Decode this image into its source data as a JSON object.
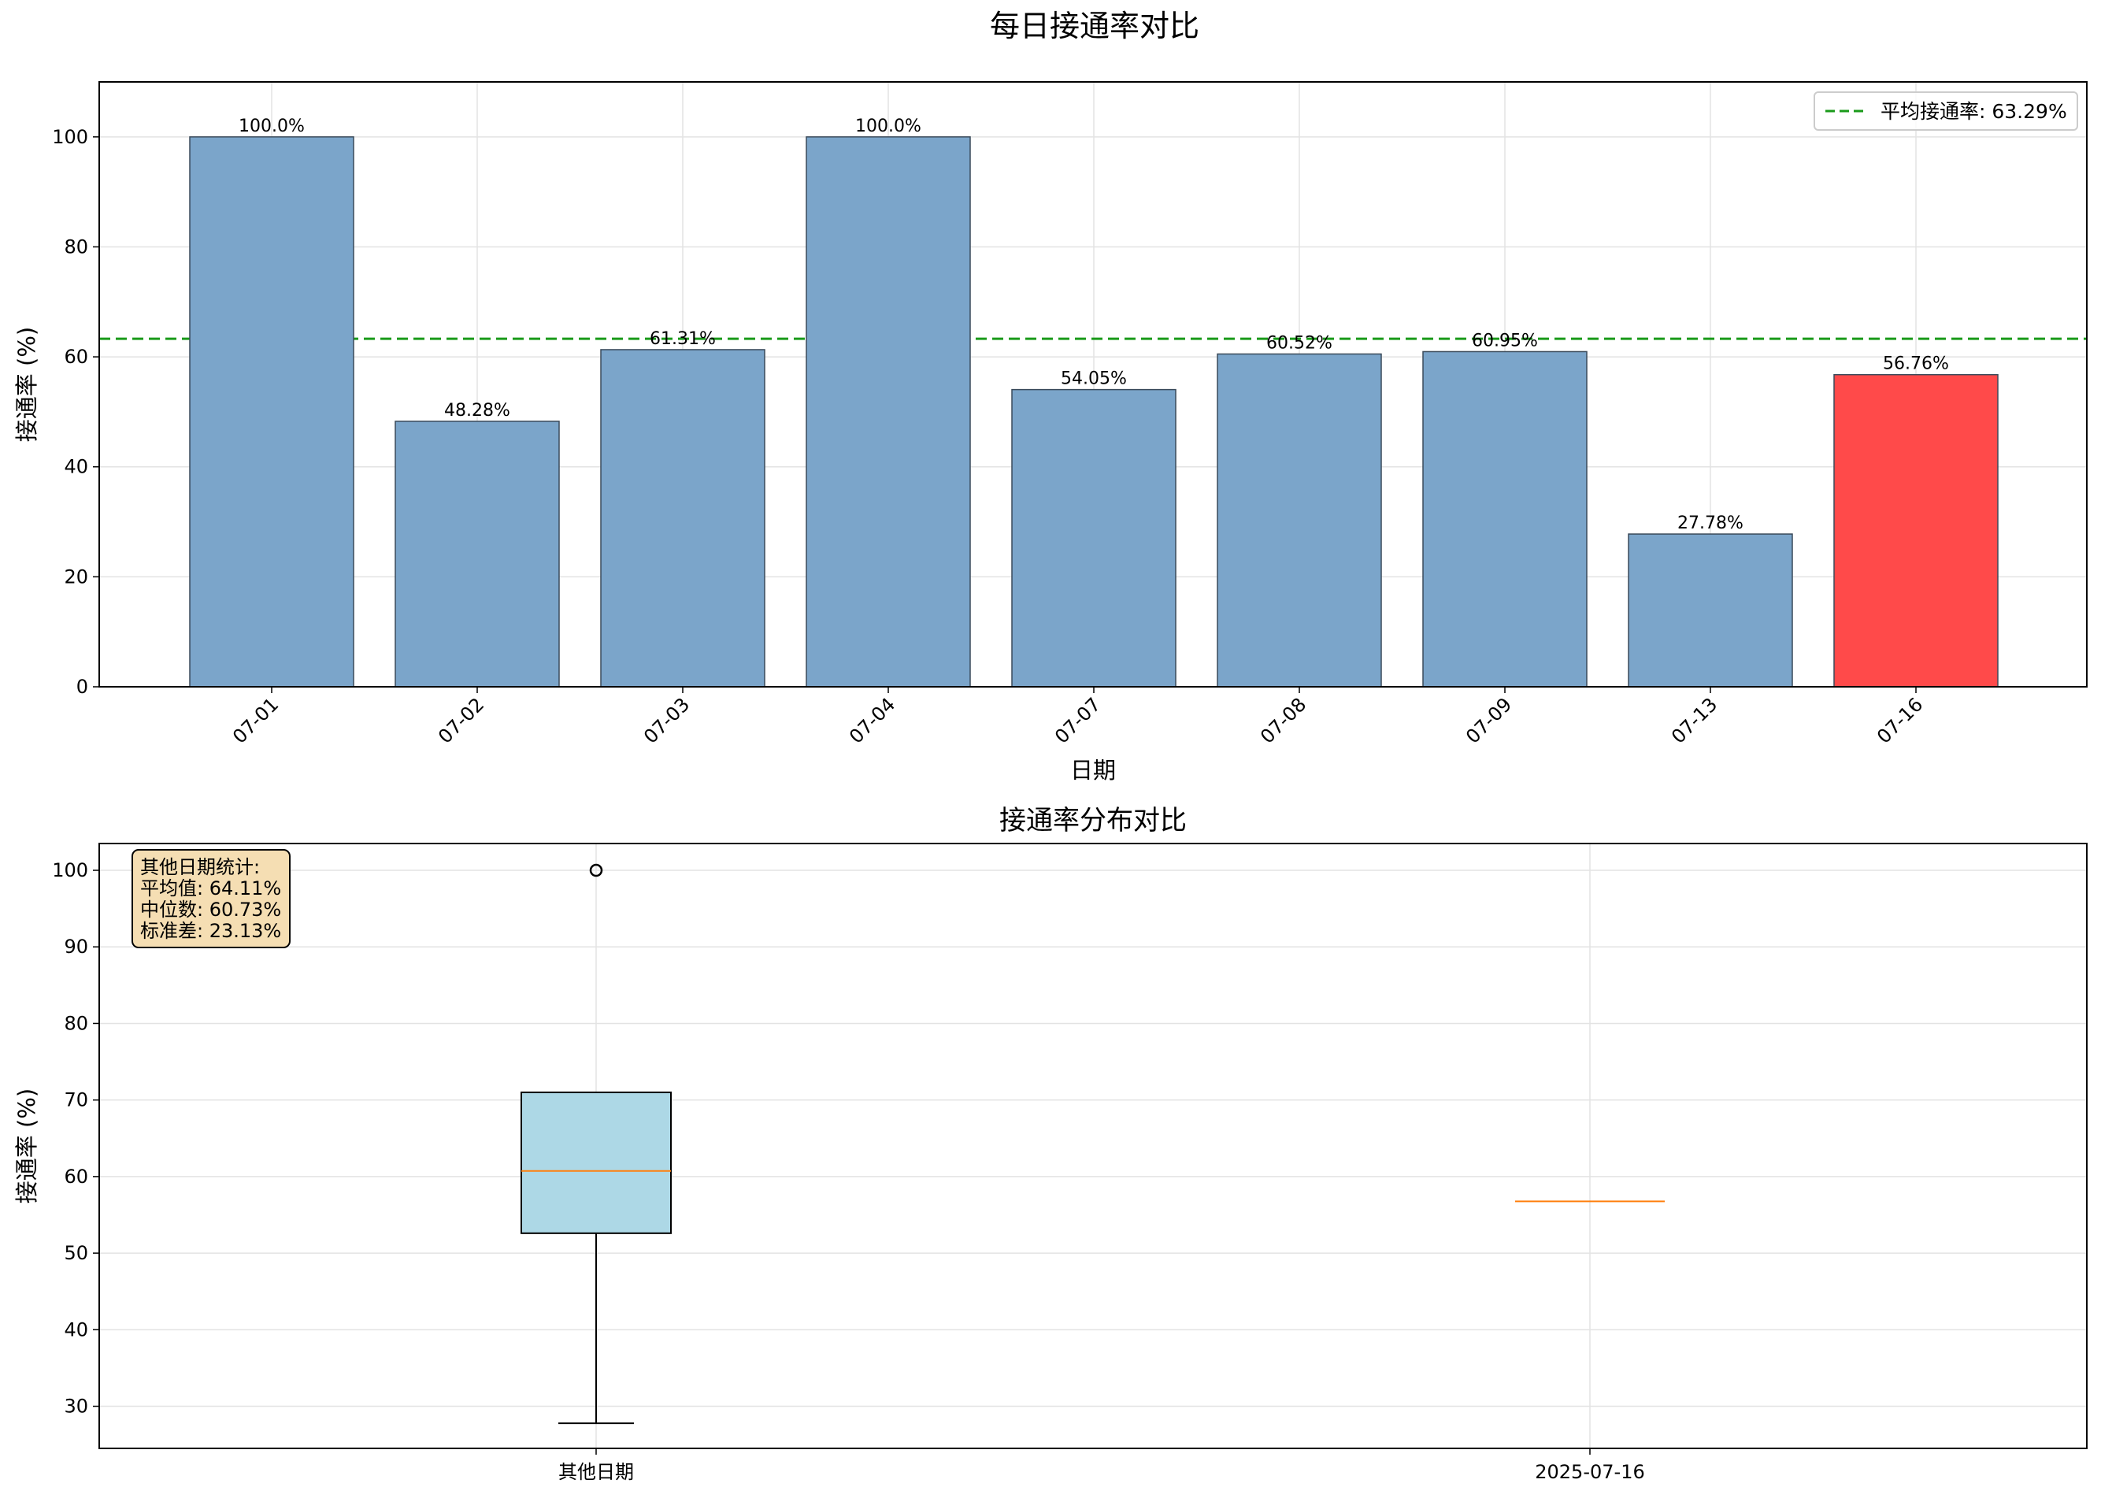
{
  "figure": {
    "suptitle": "每日接通率对比"
  },
  "chart_data": [
    {
      "type": "bar",
      "title": "",
      "xlabel": "日期",
      "ylabel": "接通率 (%)",
      "ylim": [
        0,
        110
      ],
      "yticks": [
        0,
        20,
        40,
        60,
        80,
        100
      ],
      "grid": true,
      "categories": [
        "07-01",
        "07-02",
        "07-03",
        "07-04",
        "07-07",
        "07-08",
        "07-09",
        "07-13",
        "07-16"
      ],
      "values": [
        100.0,
        48.28,
        61.31,
        100.0,
        54.05,
        60.52,
        60.95,
        27.78,
        56.76
      ],
      "value_labels": [
        "100.0%",
        "48.28%",
        "61.31%",
        "100.0%",
        "54.05%",
        "60.52%",
        "60.95%",
        "27.78%",
        "56.76%"
      ],
      "highlight_index": 8,
      "colors": {
        "bar": "#7ba5ca",
        "highlight": "#ff4a4a",
        "edge": "#3a4a5a",
        "mean_line": "#1a9a1a"
      },
      "reference_line": {
        "value": 63.29,
        "style": "dashed"
      },
      "legend": {
        "position": "top-right",
        "entries": [
          "平均接通率: 63.29%"
        ]
      }
    },
    {
      "type": "box",
      "title": "接通率分布对比",
      "xlabel": "",
      "ylabel": "接通率 (%)",
      "ylim": [
        24.5,
        103.5
      ],
      "yticks": [
        30,
        40,
        50,
        60,
        70,
        80,
        90,
        100
      ],
      "grid": true,
      "categories": [
        "其他日期",
        "2025-07-16"
      ],
      "boxes": [
        {
          "whisker_low": 27.78,
          "q1": 52.6,
          "median": 60.73,
          "q3": 71.0,
          "whisker_high": 71.0,
          "outliers": [
            100.0
          ]
        },
        {
          "whisker_low": 56.76,
          "q1": 56.76,
          "median": 56.76,
          "q3": 56.76,
          "whisker_high": 56.76,
          "outliers": []
        }
      ],
      "colors": {
        "box_fill": "#add8e6",
        "median": "#ff7f0e",
        "stats_box_bg": "#f5deb3"
      },
      "stats_box": {
        "position": "top-left",
        "lines": [
          "其他日期统计:",
          "平均值: 64.11%",
          "中位数: 60.73%",
          "标准差: 23.13%"
        ]
      }
    }
  ]
}
